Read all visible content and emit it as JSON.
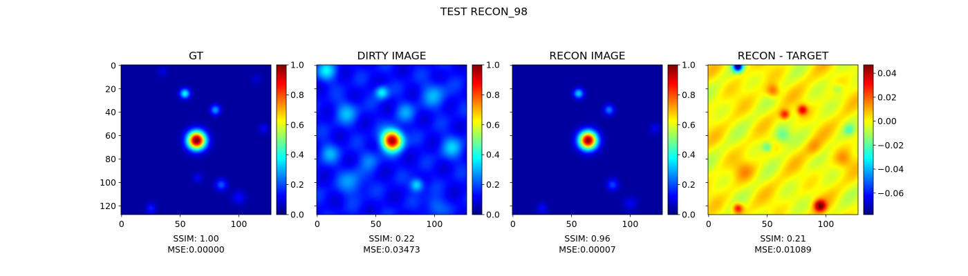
{
  "figure": {
    "suptitle": "TEST RECON_98"
  },
  "colormap": {
    "name": "jet",
    "stops": [
      "#00007f",
      "#0000ff",
      "#007fff",
      "#00ffff",
      "#7fff7f",
      "#ffff00",
      "#ff7f00",
      "#ff0000",
      "#7f0000"
    ]
  },
  "chart_data": [
    {
      "type": "heatmap",
      "title": "GT",
      "image_size": [
        128,
        128
      ],
      "x_ticks": [
        0,
        50,
        100
      ],
      "y_ticks": [
        0,
        20,
        40,
        60,
        80,
        100,
        120
      ],
      "show_y_tick_labels": true,
      "colorbar": {
        "range": [
          0.0,
          1.0
        ],
        "ticks": [
          0.0,
          0.2,
          0.4,
          0.6,
          0.8,
          1.0
        ],
        "tick_labels": [
          "0.0",
          "0.2",
          "0.4",
          "0.6",
          "0.8",
          "1.0"
        ]
      },
      "caption": [
        "SSIM: 1.00",
        "MSE:0.00000"
      ],
      "features": [
        {
          "x": 64,
          "y": 64,
          "sigma": 5.5,
          "amp": 1.0
        },
        {
          "x": 54,
          "y": 24,
          "sigma": 3,
          "amp": 0.35
        },
        {
          "x": 80,
          "y": 38,
          "sigma": 3,
          "amp": 0.25
        },
        {
          "x": 85,
          "y": 102,
          "sigma": 3.5,
          "amp": 0.18
        },
        {
          "x": 65,
          "y": 96,
          "sigma": 3,
          "amp": 0.08
        },
        {
          "x": 25,
          "y": 122,
          "sigma": 3,
          "amp": 0.12
        },
        {
          "x": 100,
          "y": 113,
          "sigma": 4,
          "amp": 0.1
        },
        {
          "x": 121,
          "y": 54,
          "sigma": 3,
          "amp": 0.08
        },
        {
          "x": 35,
          "y": 5,
          "sigma": 3,
          "amp": 0.06
        },
        {
          "x": 115,
          "y": 12,
          "sigma": 3,
          "amp": 0.05
        }
      ],
      "background": 0.03
    },
    {
      "type": "heatmap",
      "title": "DIRTY IMAGE",
      "image_size": [
        128,
        128
      ],
      "x_ticks": [
        0,
        50,
        100
      ],
      "y_ticks": [
        0,
        20,
        40,
        60,
        80,
        100,
        120
      ],
      "show_y_tick_labels": false,
      "colorbar": {
        "range": [
          0.0,
          1.0
        ],
        "ticks": [
          0.0,
          0.2,
          0.4,
          0.6,
          0.8,
          1.0
        ],
        "tick_labels": [
          "0.0",
          "0.2",
          "0.4",
          "0.6",
          "0.8",
          "1.0"
        ]
      },
      "caption": [
        "SSIM: 0.22",
        "MSE:0.03473"
      ],
      "features": [
        {
          "x": 64,
          "y": 64,
          "sigma": 6,
          "amp": 0.85
        },
        {
          "x": 55,
          "y": 23,
          "sigma": 4,
          "amp": 0.25
        },
        {
          "x": 85,
          "y": 102,
          "sigma": 4,
          "amp": 0.25
        },
        {
          "x": 8,
          "y": 5,
          "sigma": 6,
          "amp": 0.2
        },
        {
          "x": 25,
          "y": 40,
          "sigma": 7,
          "amp": 0.15
        },
        {
          "x": 100,
          "y": 25,
          "sigma": 8,
          "amp": 0.14
        },
        {
          "x": 115,
          "y": 70,
          "sigma": 7,
          "amp": 0.16
        },
        {
          "x": 30,
          "y": 100,
          "sigma": 8,
          "amp": 0.14
        },
        {
          "x": 100,
          "y": 120,
          "sigma": 6,
          "amp": 0.12
        },
        {
          "x": 10,
          "y": 75,
          "sigma": 6,
          "amp": 0.14
        },
        {
          "x": 75,
          "y": 40,
          "sigma": 6,
          "amp": 0.12
        },
        {
          "x": 45,
          "y": 80,
          "sigma": 6,
          "amp": 0.1
        }
      ],
      "background": 0.13
    },
    {
      "type": "heatmap",
      "title": "RECON IMAGE",
      "image_size": [
        128,
        128
      ],
      "x_ticks": [
        0,
        50,
        100
      ],
      "y_ticks": [
        0,
        20,
        40,
        60,
        80,
        100,
        120
      ],
      "show_y_tick_labels": false,
      "colorbar": {
        "range": [
          0.0,
          1.0
        ],
        "ticks": [
          0.0,
          0.2,
          0.4,
          0.6,
          0.8,
          1.0
        ],
        "tick_labels": [
          "0.0",
          "0.2",
          "0.4",
          "0.6",
          "0.8",
          "1.0"
        ]
      },
      "caption": [
        "SSIM: 0.96",
        "MSE:0.00007"
      ],
      "features": [
        {
          "x": 64,
          "y": 64,
          "sigma": 5.5,
          "amp": 0.96
        },
        {
          "x": 56,
          "y": 24,
          "sigma": 3,
          "amp": 0.3
        },
        {
          "x": 82,
          "y": 38,
          "sigma": 3,
          "amp": 0.22
        },
        {
          "x": 85,
          "y": 102,
          "sigma": 3.5,
          "amp": 0.16
        },
        {
          "x": 25,
          "y": 122,
          "sigma": 3,
          "amp": 0.1
        },
        {
          "x": 100,
          "y": 118,
          "sigma": 4,
          "amp": 0.08
        },
        {
          "x": 121,
          "y": 54,
          "sigma": 3,
          "amp": 0.08
        }
      ],
      "background": 0.03
    },
    {
      "type": "heatmap",
      "title": "RECON - TARGET",
      "image_size": [
        128,
        128
      ],
      "x_ticks": [
        0,
        50,
        100
      ],
      "y_ticks": [
        0,
        20,
        40,
        60,
        80,
        100,
        120
      ],
      "show_y_tick_labels": false,
      "colorbar": {
        "range": [
          -0.078,
          0.047
        ],
        "ticks": [
          -0.06,
          -0.04,
          -0.02,
          0.0,
          0.02,
          0.04
        ],
        "tick_labels": [
          "−0.06",
          "−0.04",
          "−0.02",
          "0.00",
          "0.02",
          "0.04"
        ]
      },
      "caption": [
        "SSIM: 0.21",
        "MSE:0.01089"
      ],
      "features": [
        {
          "x": 25,
          "y": 1,
          "sigma": 3,
          "amp": -0.07
        },
        {
          "x": 55,
          "y": 22,
          "sigma": 4,
          "amp": 0.022
        },
        {
          "x": 80,
          "y": 38,
          "sigma": 3,
          "amp": 0.035
        },
        {
          "x": 65,
          "y": 42,
          "sigma": 3,
          "amp": 0.03
        },
        {
          "x": 95,
          "y": 120,
          "sigma": 3.5,
          "amp": 0.045
        },
        {
          "x": 25,
          "y": 122,
          "sigma": 3,
          "amp": 0.035
        },
        {
          "x": 63,
          "y": 60,
          "sigma": 5,
          "amp": -0.02
        },
        {
          "x": 50,
          "y": 70,
          "sigma": 3,
          "amp": -0.02
        },
        {
          "x": 120,
          "y": 55,
          "sigma": 3,
          "amp": -0.015
        },
        {
          "x": 110,
          "y": 20,
          "sigma": 3,
          "amp": -0.012
        },
        {
          "x": 115,
          "y": 80,
          "sigma": 5,
          "amp": 0.012
        },
        {
          "x": 30,
          "y": 90,
          "sigma": 6,
          "amp": 0.01
        },
        {
          "x": 90,
          "y": 70,
          "sigma": 5,
          "amp": 0.01
        }
      ],
      "background": 0.0
    }
  ]
}
